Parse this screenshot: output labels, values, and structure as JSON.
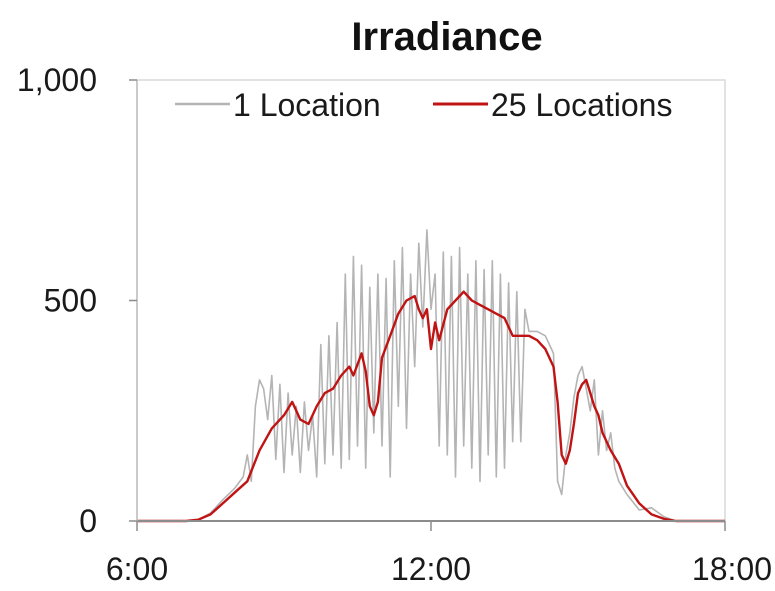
{
  "chart_data": {
    "type": "line",
    "title": "Irradiance",
    "xlabel": "",
    "ylabel": "",
    "xlim": [
      "6:00",
      "18:00"
    ],
    "ylim": [
      0,
      1000
    ],
    "x_ticks": [
      "6:00",
      "12:00",
      "18:00"
    ],
    "y_ticks": [
      "0",
      "500",
      "1,000"
    ],
    "grid": false,
    "legend": "top",
    "series": [
      {
        "name": "1 Location",
        "color": "#b4b4b4",
        "points": [
          [
            "6:00",
            0
          ],
          [
            "7:00",
            0
          ],
          [
            "7:15",
            3
          ],
          [
            "7:30",
            18
          ],
          [
            "7:45",
            48
          ],
          [
            "8:00",
            75
          ],
          [
            "8:10",
            100
          ],
          [
            "8:15",
            150
          ],
          [
            "8:20",
            90
          ],
          [
            "8:25",
            260
          ],
          [
            "8:30",
            320
          ],
          [
            "8:35",
            300
          ],
          [
            "8:40",
            230
          ],
          [
            "8:45",
            330
          ],
          [
            "8:50",
            140
          ],
          [
            "8:55",
            310
          ],
          [
            "9:00",
            110
          ],
          [
            "9:05",
            290
          ],
          [
            "9:10",
            150
          ],
          [
            "9:15",
            260
          ],
          [
            "9:20",
            110
          ],
          [
            "9:25",
            270
          ],
          [
            "9:30",
            160
          ],
          [
            "9:35",
            240
          ],
          [
            "9:40",
            100
          ],
          [
            "9:45",
            400
          ],
          [
            "9:50",
            130
          ],
          [
            "9:55",
            420
          ],
          [
            "10:00",
            150
          ],
          [
            "10:05",
            450
          ],
          [
            "10:10",
            120
          ],
          [
            "10:15",
            560
          ],
          [
            "10:20",
            140
          ],
          [
            "10:25",
            600
          ],
          [
            "10:30",
            170
          ],
          [
            "10:35",
            580
          ],
          [
            "10:40",
            120
          ],
          [
            "10:45",
            530
          ],
          [
            "10:50",
            200
          ],
          [
            "10:55",
            560
          ],
          [
            "11:00",
            170
          ],
          [
            "11:05",
            550
          ],
          [
            "11:10",
            100
          ],
          [
            "11:15",
            590
          ],
          [
            "11:20",
            260
          ],
          [
            "11:25",
            620
          ],
          [
            "11:30",
            210
          ],
          [
            "11:35",
            560
          ],
          [
            "11:40",
            350
          ],
          [
            "11:45",
            630
          ],
          [
            "11:50",
            440
          ],
          [
            "11:55",
            660
          ],
          [
            "12:00",
            480
          ],
          [
            "12:05",
            560
          ],
          [
            "12:10",
            170
          ],
          [
            "12:15",
            610
          ],
          [
            "12:20",
            150
          ],
          [
            "12:25",
            600
          ],
          [
            "12:30",
            100
          ],
          [
            "12:35",
            620
          ],
          [
            "12:40",
            170
          ],
          [
            "12:45",
            560
          ],
          [
            "12:50",
            120
          ],
          [
            "12:55",
            590
          ],
          [
            "13:00",
            90
          ],
          [
            "13:05",
            570
          ],
          [
            "13:10",
            150
          ],
          [
            "13:15",
            590
          ],
          [
            "13:20",
            100
          ],
          [
            "13:25",
            560
          ],
          [
            "13:30",
            120
          ],
          [
            "13:35",
            540
          ],
          [
            "13:40",
            180
          ],
          [
            "13:45",
            520
          ],
          [
            "13:50",
            180
          ],
          [
            "13:55",
            480
          ],
          [
            "14:00",
            430
          ],
          [
            "14:10",
            430
          ],
          [
            "14:20",
            420
          ],
          [
            "14:30",
            380
          ],
          [
            "14:35",
            90
          ],
          [
            "14:40",
            60
          ],
          [
            "14:45",
            150
          ],
          [
            "14:50",
            200
          ],
          [
            "14:55",
            280
          ],
          [
            "15:00",
            330
          ],
          [
            "15:05",
            350
          ],
          [
            "15:10",
            300
          ],
          [
            "15:15",
            250
          ],
          [
            "15:20",
            320
          ],
          [
            "15:25",
            150
          ],
          [
            "15:30",
            250
          ],
          [
            "15:35",
            160
          ],
          [
            "15:40",
            200
          ],
          [
            "15:45",
            120
          ],
          [
            "15:50",
            90
          ],
          [
            "16:00",
            60
          ],
          [
            "16:15",
            25
          ],
          [
            "16:30",
            30
          ],
          [
            "16:45",
            10
          ],
          [
            "17:00",
            0
          ],
          [
            "18:00",
            0
          ]
        ]
      },
      {
        "name": "25 Locations",
        "color": "#c01414",
        "points": [
          [
            "6:00",
            0
          ],
          [
            "7:00",
            0
          ],
          [
            "7:15",
            3
          ],
          [
            "7:30",
            15
          ],
          [
            "7:45",
            40
          ],
          [
            "8:00",
            65
          ],
          [
            "8:15",
            90
          ],
          [
            "8:30",
            160
          ],
          [
            "8:45",
            210
          ],
          [
            "9:00",
            240
          ],
          [
            "9:10",
            270
          ],
          [
            "9:15",
            250
          ],
          [
            "9:20",
            230
          ],
          [
            "9:30",
            220
          ],
          [
            "9:40",
            260
          ],
          [
            "9:50",
            290
          ],
          [
            "10:00",
            300
          ],
          [
            "10:10",
            330
          ],
          [
            "10:20",
            350
          ],
          [
            "10:25",
            330
          ],
          [
            "10:35",
            380
          ],
          [
            "10:40",
            340
          ],
          [
            "10:45",
            260
          ],
          [
            "10:50",
            240
          ],
          [
            "10:55",
            270
          ],
          [
            "11:00",
            370
          ],
          [
            "11:10",
            420
          ],
          [
            "11:20",
            470
          ],
          [
            "11:30",
            500
          ],
          [
            "11:40",
            510
          ],
          [
            "11:45",
            480
          ],
          [
            "11:50",
            460
          ],
          [
            "11:55",
            480
          ],
          [
            "12:00",
            390
          ],
          [
            "12:05",
            450
          ],
          [
            "12:10",
            410
          ],
          [
            "12:20",
            480
          ],
          [
            "12:30",
            500
          ],
          [
            "12:40",
            520
          ],
          [
            "12:50",
            500
          ],
          [
            "13:00",
            490
          ],
          [
            "13:10",
            480
          ],
          [
            "13:20",
            470
          ],
          [
            "13:30",
            460
          ],
          [
            "13:40",
            420
          ],
          [
            "13:50",
            420
          ],
          [
            "14:00",
            420
          ],
          [
            "14:10",
            410
          ],
          [
            "14:20",
            390
          ],
          [
            "14:30",
            350
          ],
          [
            "14:35",
            270
          ],
          [
            "14:40",
            150
          ],
          [
            "14:45",
            130
          ],
          [
            "14:50",
            160
          ],
          [
            "14:55",
            220
          ],
          [
            "15:00",
            290
          ],
          [
            "15:05",
            310
          ],
          [
            "15:10",
            320
          ],
          [
            "15:15",
            290
          ],
          [
            "15:20",
            260
          ],
          [
            "15:25",
            240
          ],
          [
            "15:30",
            200
          ],
          [
            "15:40",
            160
          ],
          [
            "15:50",
            130
          ],
          [
            "16:00",
            80
          ],
          [
            "16:15",
            40
          ],
          [
            "16:30",
            15
          ],
          [
            "16:45",
            5
          ],
          [
            "17:00",
            0
          ],
          [
            "18:00",
            0
          ]
        ]
      }
    ]
  }
}
